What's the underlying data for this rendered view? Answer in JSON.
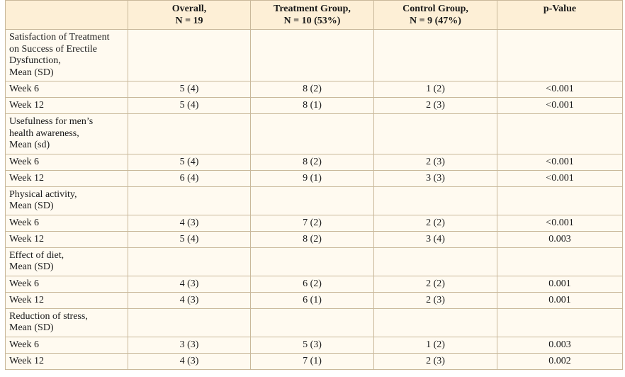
{
  "table": {
    "header": [
      {
        "lines": [
          "Overall,",
          "N = 19"
        ]
      },
      {
        "lines": [
          "Treatment Group,",
          "N = 10 (53%)"
        ]
      },
      {
        "lines": [
          "Control Group,",
          "N = 9 (47%)"
        ]
      },
      {
        "lines": [
          "p-Value"
        ]
      }
    ],
    "sections": [
      {
        "label_lines": [
          "Satisfaction of Treatment",
          "on Success of Erectile",
          "Dysfunction,",
          "Mean (SD)"
        ],
        "rows": [
          [
            "Week 6",
            "5 (4)",
            "8 (2)",
            "1 (2)",
            "<0.001"
          ],
          [
            "Week 12",
            "5 (4)",
            "8 (1)",
            "2 (3)",
            "<0.001"
          ]
        ]
      },
      {
        "label_lines": [
          "Usefulness for men’s",
          "health awareness,",
          "Mean (sd)"
        ],
        "rows": [
          [
            "Week 6",
            "5 (4)",
            "8 (2)",
            "2 (3)",
            "<0.001"
          ],
          [
            "Week 12",
            "6 (4)",
            "9 (1)",
            "3 (3)",
            "<0.001"
          ]
        ]
      },
      {
        "label_lines": [
          "Physical activity,",
          "Mean (SD)"
        ],
        "rows": [
          [
            "Week 6",
            "4 (3)",
            "7 (2)",
            "2 (2)",
            "<0.001"
          ],
          [
            "Week 12",
            "5 (4)",
            "8 (2)",
            "3 (4)",
            "0.003"
          ]
        ]
      },
      {
        "label_lines": [
          "Effect of diet,",
          "Mean (SD)"
        ],
        "rows": [
          [
            "Week 6",
            "4 (3)",
            "6 (2)",
            "2 (2)",
            "0.001"
          ],
          [
            "Week 12",
            "4 (3)",
            "6 (1)",
            "2 (3)",
            "0.001"
          ]
        ]
      },
      {
        "label_lines": [
          "Reduction of stress,",
          "Mean (SD)"
        ],
        "rows": [
          [
            "Week 6",
            "3 (3)",
            "5 (3)",
            "1 (2)",
            "0.003"
          ],
          [
            "Week 12",
            "4 (3)",
            "7 (1)",
            "2 (3)",
            "0.002"
          ]
        ]
      }
    ]
  }
}
